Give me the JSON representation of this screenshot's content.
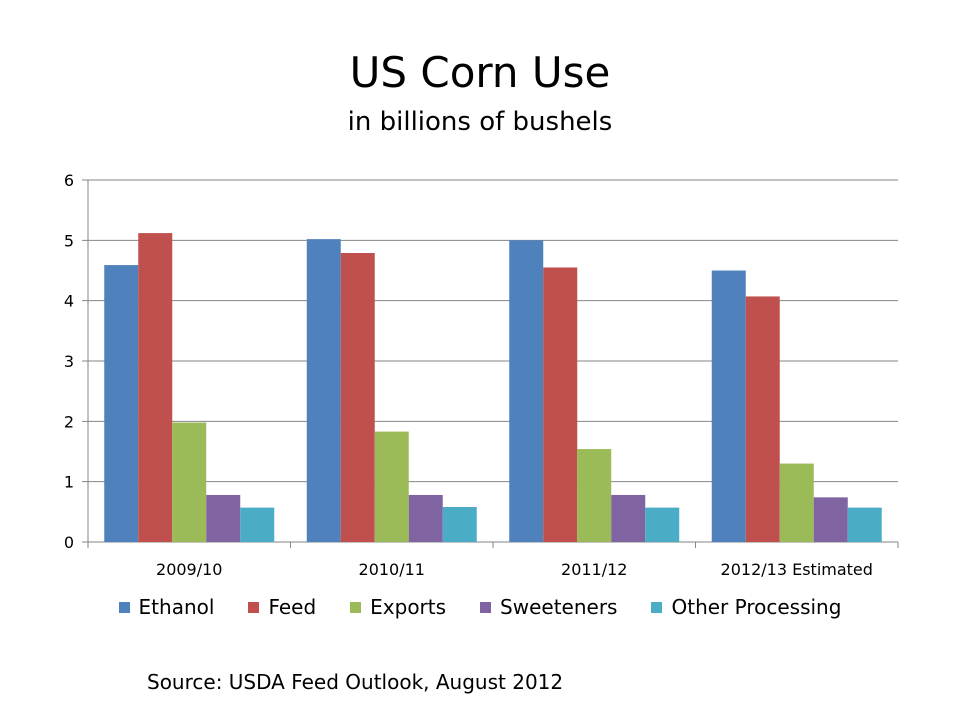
{
  "chart_data": {
    "type": "bar",
    "title": "US Corn Use",
    "subtitle": "in billions of bushels",
    "categories": [
      "2009/10",
      "2010/11",
      "2011/12",
      "2012/13 Estimated"
    ],
    "series": [
      {
        "name": "Ethanol",
        "color": "#4F81BD",
        "values": [
          4.59,
          5.02,
          5.0,
          4.5
        ]
      },
      {
        "name": "Feed",
        "color": "#C0504D",
        "values": [
          5.12,
          4.79,
          4.55,
          4.07
        ]
      },
      {
        "name": "Exports",
        "color": "#9BBB59",
        "values": [
          1.98,
          1.83,
          1.54,
          1.3
        ]
      },
      {
        "name": "Sweeteners",
        "color": "#8064A2",
        "values": [
          0.78,
          0.78,
          0.78,
          0.74
        ]
      },
      {
        "name": "Other Processing",
        "color": "#4BACC6",
        "values": [
          0.57,
          0.58,
          0.57,
          0.57
        ]
      }
    ],
    "ylim": [
      0,
      6
    ],
    "yticks": [
      "0",
      "1",
      "2",
      "3",
      "4",
      "5",
      "6"
    ],
    "xlabel": "",
    "ylabel": "",
    "grid": true,
    "legend_position": "bottom"
  },
  "source": "Source:  USDA Feed Outlook, August 2012"
}
